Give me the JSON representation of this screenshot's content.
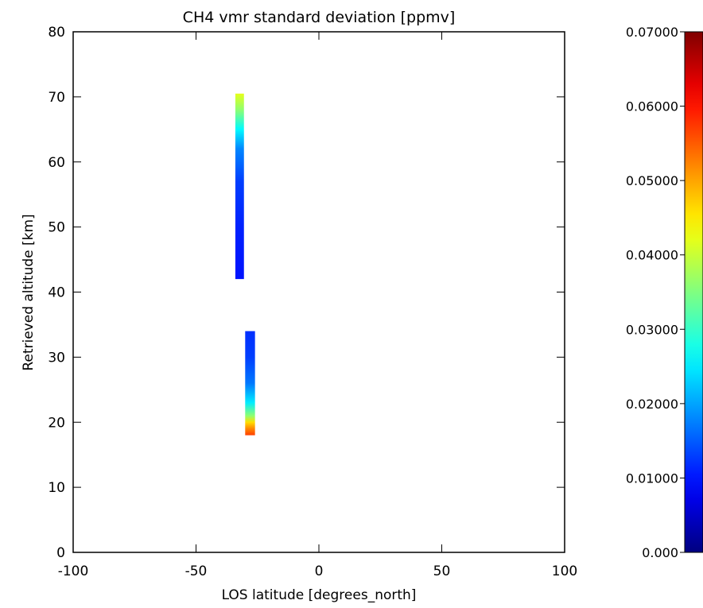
{
  "chart_data": {
    "type": "heatmap",
    "title": "CH4 vmr standard deviation [ppmv]",
    "xlabel": "LOS latitude [degrees_north]",
    "ylabel": "Retrieved altitude [km]",
    "xlim": [
      -100,
      100
    ],
    "ylim": [
      0,
      80
    ],
    "xticks": [
      "-100",
      "-50",
      "0",
      "50",
      "100"
    ],
    "yticks": [
      "0",
      "10",
      "20",
      "30",
      "40",
      "50",
      "60",
      "70",
      "80"
    ],
    "grid": false,
    "colormap": "jet",
    "colorbar": {
      "min": 0.0,
      "max": 0.07,
      "ticks": [
        "0.000",
        "0.01000",
        "0.02000",
        "0.03000",
        "0.04000",
        "0.05000",
        "0.06000",
        "0.07000"
      ]
    },
    "columns": [
      {
        "latitude_range": [
          -34,
          -30.5
        ],
        "altitude_range": [
          42,
          70.5
        ],
        "profile": [
          {
            "altitude": 42,
            "value": 0.01
          },
          {
            "altitude": 50,
            "value": 0.011
          },
          {
            "altitude": 57,
            "value": 0.013
          },
          {
            "altitude": 62,
            "value": 0.018
          },
          {
            "altitude": 65,
            "value": 0.026
          },
          {
            "altitude": 68,
            "value": 0.036
          },
          {
            "altitude": 70.5,
            "value": 0.042
          }
        ]
      },
      {
        "latitude_range": [
          -30,
          -26
        ],
        "altitude_range": [
          18,
          34
        ],
        "profile": [
          {
            "altitude": 18,
            "value": 0.057
          },
          {
            "altitude": 19,
            "value": 0.052
          },
          {
            "altitude": 20,
            "value": 0.046
          },
          {
            "altitude": 21,
            "value": 0.036
          },
          {
            "altitude": 23,
            "value": 0.025
          },
          {
            "altitude": 26,
            "value": 0.017
          },
          {
            "altitude": 30,
            "value": 0.013
          },
          {
            "altitude": 34,
            "value": 0.012
          }
        ]
      }
    ]
  }
}
